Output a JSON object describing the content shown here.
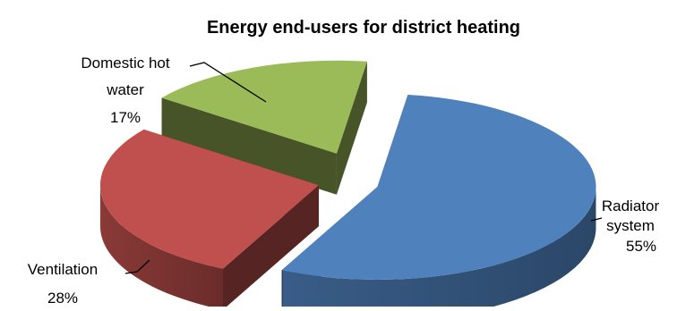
{
  "chart_data": {
    "type": "pie",
    "title": "Energy end-users for district heating",
    "slices": [
      {
        "label_lines": [
          "Radiator",
          "system"
        ],
        "percent_label": "55%",
        "value": 55,
        "color": "#4F81BD"
      },
      {
        "label_lines": [
          "Ventilation"
        ],
        "percent_label": "28%",
        "value": 28,
        "color": "#C0504D"
      },
      {
        "label_lines": [
          "Domestic hot",
          "water"
        ],
        "percent_label": "17%",
        "value": 17,
        "color": "#9BBB59"
      }
    ],
    "legend": "none",
    "style": "3d-exploded"
  }
}
